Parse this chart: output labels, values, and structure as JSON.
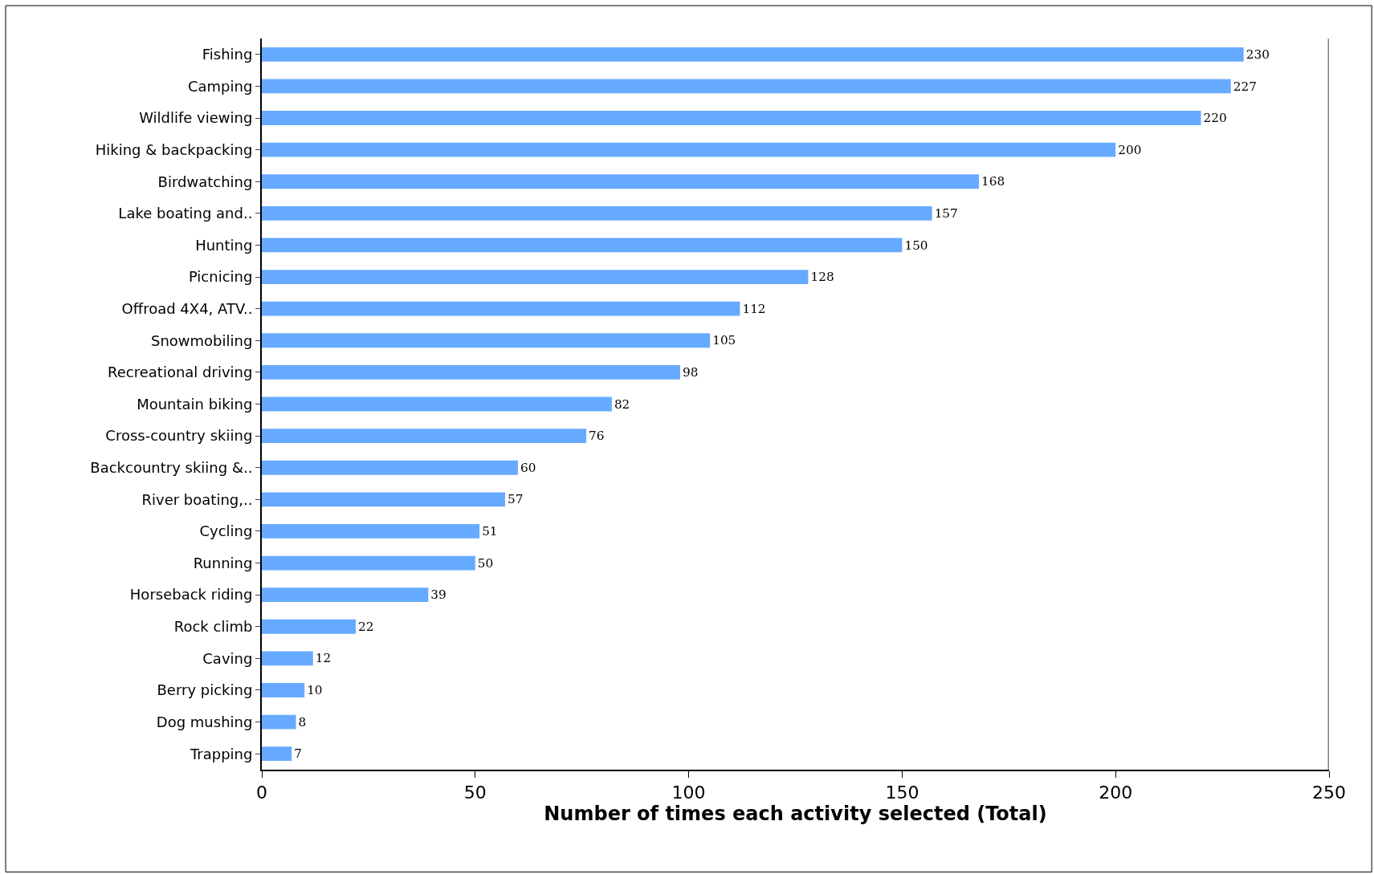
{
  "chart_data": {
    "type": "bar",
    "orientation": "horizontal",
    "xlabel": "Number of times each activity selected (Total)",
    "categories": [
      "Fishing",
      "Camping",
      "Wildlife viewing",
      "Hiking & backpacking",
      "Birdwatching",
      "Lake boating and..",
      "Hunting",
      "Picnicing",
      "Offroad 4X4, ATV..",
      "Snowmobiling",
      "Recreational driving",
      "Mountain biking",
      "Cross-country skiing",
      "Backcountry skiing &..",
      "River boating,..",
      "Cycling",
      "Running",
      "Horseback riding",
      "Rock climb",
      "Caving",
      "Berry picking",
      "Dog mushing",
      "Trapping"
    ],
    "values": [
      230,
      227,
      220,
      200,
      168,
      157,
      150,
      128,
      112,
      105,
      98,
      82,
      76,
      60,
      57,
      51,
      50,
      39,
      22,
      12,
      10,
      8,
      7
    ],
    "color": "#66aaff",
    "xlim": [
      0,
      250
    ],
    "xticks": [
      0,
      50,
      100,
      150,
      200,
      250
    ],
    "data_labels": true
  }
}
